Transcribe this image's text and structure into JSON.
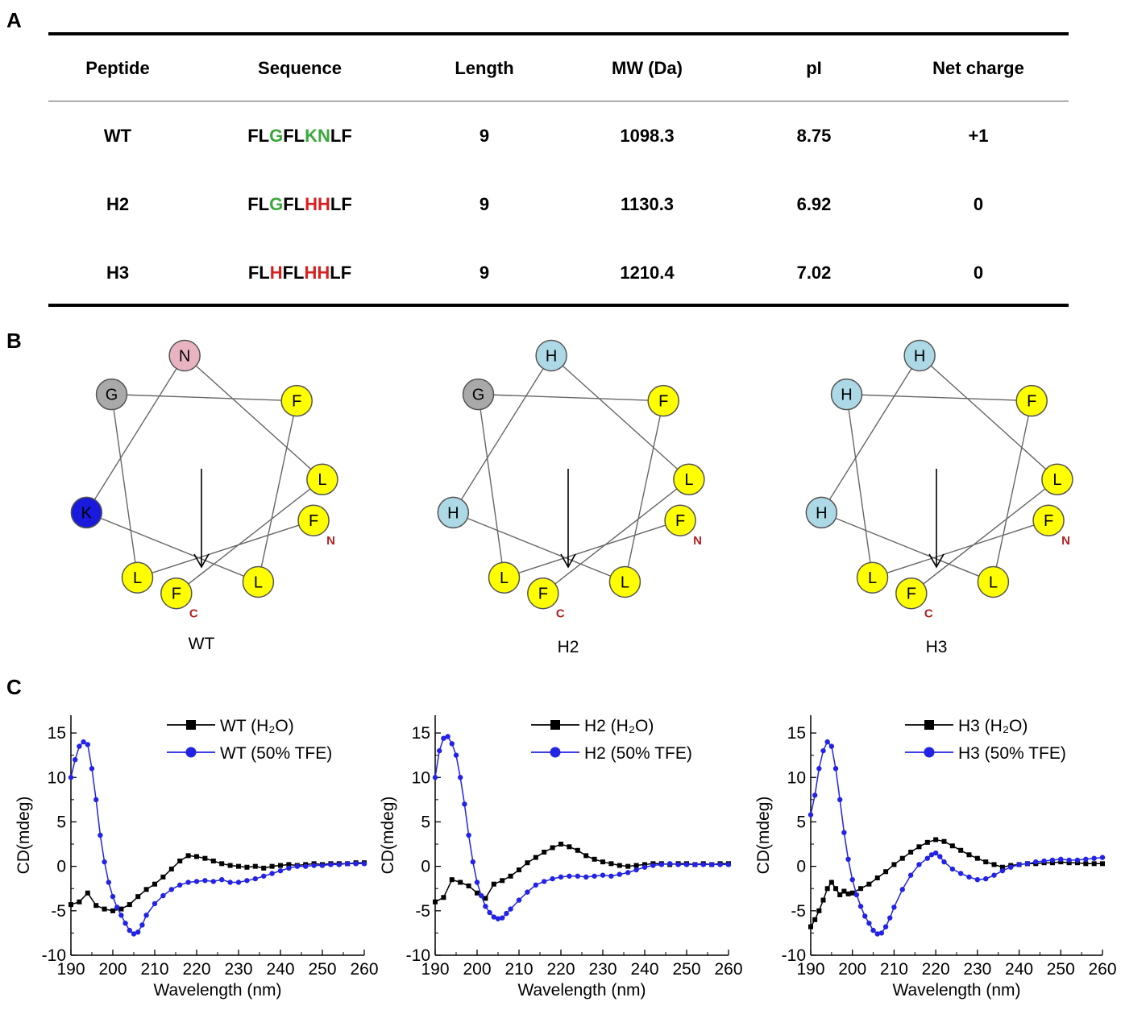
{
  "panels": {
    "a": "A",
    "b": "B",
    "c": "C"
  },
  "table": {
    "headers": [
      "Peptide",
      "Sequence",
      "Length",
      "MW (Da)",
      "pI",
      "Net charge"
    ],
    "rows": [
      {
        "peptide": "WT",
        "sequence": [
          [
            "FL",
            ""
          ],
          [
            "G",
            "g"
          ],
          [
            "FL",
            ""
          ],
          [
            "KN",
            "g"
          ],
          [
            "LF",
            ""
          ]
        ],
        "length": "9",
        "mw": "1098.3",
        "pi": "8.75",
        "charge": "+1"
      },
      {
        "peptide": "H2",
        "sequence": [
          [
            "FL",
            ""
          ],
          [
            "G",
            "g"
          ],
          [
            "FL",
            ""
          ],
          [
            "HH",
            "r"
          ],
          [
            "LF",
            ""
          ]
        ],
        "length": "9",
        "mw": "1130.3",
        "pi": "6.92",
        "charge": "0"
      },
      {
        "peptide": "H3",
        "sequence": [
          [
            "FL",
            ""
          ],
          [
            "H",
            "r"
          ],
          [
            "FL",
            ""
          ],
          [
            "HH",
            "r"
          ],
          [
            "LF",
            ""
          ]
        ],
        "length": "9",
        "mw": "1210.4",
        "pi": "7.02",
        "charge": "0"
      }
    ]
  },
  "wheels": [
    {
      "name": "WT",
      "residues": [
        "F",
        "L",
        "G",
        "F",
        "L",
        "K",
        "N",
        "L",
        "F"
      ],
      "colors": [
        "#ffff00",
        "#ffff00",
        "#a9a9a9",
        "#ffff00",
        "#ffff00",
        "#1a1adc",
        "#e8b4c2",
        "#ffff00",
        "#ffff00"
      ]
    },
    {
      "name": "H2",
      "residues": [
        "F",
        "L",
        "G",
        "F",
        "L",
        "H",
        "H",
        "L",
        "F"
      ],
      "colors": [
        "#ffff00",
        "#ffff00",
        "#a9a9a9",
        "#ffff00",
        "#ffff00",
        "#add8e6",
        "#add8e6",
        "#ffff00",
        "#ffff00"
      ]
    },
    {
      "name": "H3",
      "residues": [
        "F",
        "L",
        "H",
        "F",
        "L",
        "H",
        "H",
        "L",
        "F"
      ],
      "colors": [
        "#ffff00",
        "#ffff00",
        "#add8e6",
        "#ffff00",
        "#ffff00",
        "#add8e6",
        "#add8e6",
        "#ffff00",
        "#ffff00"
      ]
    }
  ],
  "terminus": {
    "n": "N",
    "c": "C"
  },
  "chart_data": [
    {
      "type": "line",
      "xlabel": "Wavelength (nm)",
      "ylabel": "CD(mdeg)",
      "xlim": [
        190,
        260
      ],
      "ylim": [
        -10,
        17
      ],
      "xticks": [
        190,
        200,
        210,
        220,
        230,
        240,
        250,
        260
      ],
      "yticks": [
        -10,
        -5,
        0,
        5,
        10,
        15
      ],
      "legend": "top-right",
      "series": [
        {
          "name": "WT (H₂O)",
          "color": "#000000",
          "marker": "square",
          "x": [
            190,
            192,
            194,
            196,
            198,
            200,
            202,
            204,
            206,
            208,
            210,
            212,
            214,
            216,
            218,
            220,
            222,
            224,
            226,
            228,
            230,
            232,
            234,
            236,
            238,
            240,
            242,
            244,
            246,
            248,
            250,
            252,
            254,
            256,
            258,
            260
          ],
          "y": [
            -4.3,
            -4.0,
            -3.0,
            -4.4,
            -4.8,
            -5.0,
            -4.8,
            -4.3,
            -3.4,
            -2.6,
            -2.0,
            -1.2,
            -0.3,
            0.6,
            1.2,
            1.1,
            0.9,
            0.6,
            0.3,
            0.1,
            0.0,
            -0.1,
            0.0,
            -0.2,
            0.0,
            0.1,
            0.2,
            0.1,
            0.2,
            0.3,
            0.2,
            0.3,
            0.3,
            0.3,
            0.4,
            0.4
          ]
        },
        {
          "name": "WT (50% TFE)",
          "color": "#2323e6",
          "marker": "circle",
          "x": [
            190,
            191,
            192,
            193,
            194,
            195,
            196,
            197,
            198,
            199,
            200,
            201,
            202,
            203,
            204,
            205,
            206,
            207,
            208,
            210,
            212,
            214,
            216,
            218,
            220,
            222,
            224,
            226,
            228,
            230,
            232,
            234,
            236,
            238,
            240,
            242,
            244,
            246,
            248,
            250,
            252,
            254,
            256,
            258,
            260
          ],
          "y": [
            10.0,
            12.0,
            13.5,
            14.0,
            13.7,
            11.0,
            7.5,
            3.5,
            0.5,
            -1.8,
            -3.4,
            -4.6,
            -5.5,
            -6.4,
            -7.2,
            -7.6,
            -7.4,
            -6.6,
            -5.5,
            -4.2,
            -3.3,
            -2.6,
            -2.1,
            -1.8,
            -1.7,
            -1.6,
            -1.7,
            -1.5,
            -1.8,
            -1.8,
            -1.6,
            -1.4,
            -1.1,
            -0.8,
            -0.5,
            -0.2,
            0.0,
            0.0,
            0.1,
            0.1,
            0.2,
            0.2,
            0.3,
            0.3,
            0.3
          ]
        }
      ]
    },
    {
      "type": "line",
      "xlabel": "Wavelength (nm)",
      "ylabel": "CD(mdeg)",
      "xlim": [
        190,
        260
      ],
      "ylim": [
        -10,
        17
      ],
      "xticks": [
        190,
        200,
        210,
        220,
        230,
        240,
        250,
        260
      ],
      "yticks": [
        -10,
        -5,
        0,
        5,
        10,
        15
      ],
      "legend": "top-right",
      "series": [
        {
          "name": "H2 (H₂O)",
          "color": "#000000",
          "marker": "square",
          "x": [
            190,
            192,
            194,
            196,
            198,
            200,
            202,
            204,
            206,
            208,
            210,
            212,
            214,
            216,
            218,
            220,
            222,
            224,
            226,
            228,
            230,
            232,
            234,
            236,
            238,
            240,
            242,
            244,
            246,
            248,
            250,
            252,
            254,
            256,
            258,
            260
          ],
          "y": [
            -4.0,
            -3.5,
            -1.5,
            -1.8,
            -2.2,
            -3.0,
            -3.6,
            -2.0,
            -1.6,
            -1.1,
            -0.4,
            0.4,
            1.0,
            1.6,
            2.1,
            2.5,
            2.2,
            1.8,
            1.2,
            0.8,
            0.5,
            0.3,
            0.1,
            0.0,
            0.1,
            0.2,
            0.3,
            0.3,
            0.2,
            0.3,
            0.3,
            0.2,
            0.3,
            0.2,
            0.3,
            0.3
          ]
        },
        {
          "name": "H2 (50% TFE)",
          "color": "#2323e6",
          "marker": "circle",
          "x": [
            190,
            191,
            192,
            193,
            194,
            195,
            196,
            197,
            198,
            199,
            200,
            201,
            202,
            203,
            204,
            205,
            206,
            207,
            208,
            210,
            212,
            214,
            216,
            218,
            220,
            222,
            224,
            226,
            228,
            230,
            232,
            234,
            236,
            238,
            240,
            242,
            244,
            246,
            248,
            250,
            252,
            254,
            256,
            258,
            260
          ],
          "y": [
            10.0,
            13.0,
            14.4,
            14.6,
            13.8,
            12.5,
            10.0,
            7.0,
            3.5,
            0.5,
            -1.8,
            -3.3,
            -4.5,
            -5.2,
            -5.7,
            -5.9,
            -5.8,
            -5.3,
            -4.8,
            -3.8,
            -2.9,
            -2.1,
            -1.7,
            -1.4,
            -1.2,
            -1.1,
            -1.1,
            -1.2,
            -1.1,
            -1.0,
            -1.1,
            -0.9,
            -0.7,
            -0.4,
            -0.1,
            0.1,
            0.2,
            0.3,
            0.2,
            0.2,
            0.2,
            0.2,
            0.2,
            0.2,
            0.2
          ]
        }
      ]
    },
    {
      "type": "line",
      "xlabel": "Wavelength (nm)",
      "ylabel": "CD(mdeg)",
      "xlim": [
        190,
        260
      ],
      "ylim": [
        -10,
        17
      ],
      "xticks": [
        190,
        200,
        210,
        220,
        230,
        240,
        250,
        260
      ],
      "yticks": [
        -10,
        -5,
        0,
        5,
        10,
        15
      ],
      "legend": "top-right",
      "series": [
        {
          "name": "H3 (H₂O)",
          "color": "#000000",
          "marker": "square",
          "x": [
            190,
            191,
            192,
            193,
            194,
            195,
            196,
            197,
            198,
            199,
            200,
            202,
            204,
            206,
            208,
            210,
            212,
            214,
            216,
            218,
            220,
            222,
            224,
            226,
            228,
            230,
            232,
            234,
            236,
            238,
            240,
            242,
            244,
            246,
            248,
            250,
            252,
            254,
            256,
            258,
            260
          ],
          "y": [
            -6.8,
            -6.0,
            -5.0,
            -3.8,
            -2.5,
            -1.8,
            -2.5,
            -3.2,
            -2.8,
            -3.1,
            -3.0,
            -2.5,
            -2.0,
            -1.3,
            -0.6,
            0.2,
            0.9,
            1.6,
            2.2,
            2.7,
            3.0,
            2.8,
            2.3,
            1.8,
            1.3,
            0.9,
            0.5,
            0.2,
            -0.1,
            0.1,
            0.2,
            0.3,
            0.3,
            0.4,
            0.4,
            0.5,
            0.4,
            0.4,
            0.3,
            0.3,
            0.3
          ]
        },
        {
          "name": "H3 (50% TFE)",
          "color": "#2323e6",
          "marker": "circle",
          "x": [
            190,
            191,
            192,
            193,
            194,
            195,
            196,
            197,
            198,
            199,
            200,
            201,
            202,
            203,
            204,
            205,
            206,
            207,
            208,
            209,
            210,
            212,
            214,
            216,
            218,
            219,
            220,
            221,
            222,
            224,
            226,
            228,
            230,
            232,
            234,
            236,
            238,
            240,
            242,
            244,
            246,
            248,
            250,
            252,
            254,
            256,
            258,
            260
          ],
          "y": [
            5.8,
            8.0,
            11.0,
            13.0,
            14.0,
            13.5,
            11.0,
            7.5,
            3.8,
            0.8,
            -1.5,
            -3.2,
            -4.5,
            -5.6,
            -6.4,
            -7.2,
            -7.6,
            -7.5,
            -6.8,
            -5.8,
            -4.6,
            -2.6,
            -1.0,
            0.2,
            0.9,
            1.3,
            1.5,
            1.1,
            0.5,
            -0.3,
            -0.8,
            -1.2,
            -1.5,
            -1.4,
            -1.0,
            -0.5,
            -0.1,
            0.2,
            0.3,
            0.5,
            0.6,
            0.7,
            0.8,
            0.7,
            0.7,
            0.8,
            0.9,
            1.0
          ]
        }
      ]
    }
  ]
}
